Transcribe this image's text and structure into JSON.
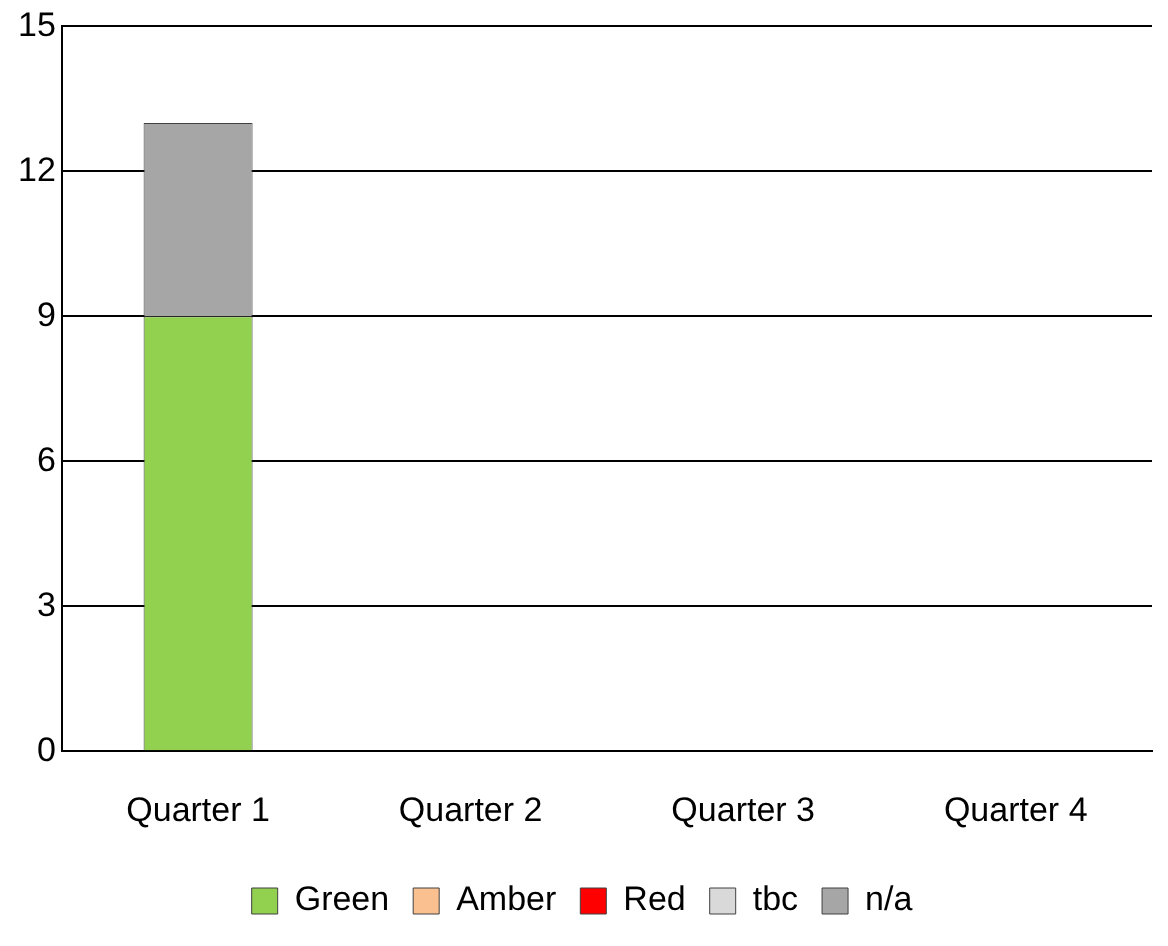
{
  "chart_data": {
    "type": "bar",
    "stacked": true,
    "categories": [
      "Quarter 1",
      "Quarter 2",
      "Quarter 3",
      "Quarter 4"
    ],
    "series": [
      {
        "name": "Green",
        "color": "#92d050",
        "values": [
          9,
          0,
          0,
          0
        ]
      },
      {
        "name": "Amber",
        "color": "#fac090",
        "values": [
          0,
          0,
          0,
          0
        ]
      },
      {
        "name": "Red",
        "color": "#ff0000",
        "values": [
          0,
          0,
          0,
          0
        ]
      },
      {
        "name": "tbc",
        "color": "#d9d9d9",
        "values": [
          0,
          0,
          0,
          0
        ]
      },
      {
        "name": "n/a",
        "color": "#a6a6a6",
        "values": [
          4,
          0,
          0,
          0
        ]
      }
    ],
    "ylim": [
      0,
      15
    ],
    "yticks": [
      0,
      3,
      6,
      9,
      12,
      15
    ],
    "grid": "y",
    "legend": "bottom"
  }
}
